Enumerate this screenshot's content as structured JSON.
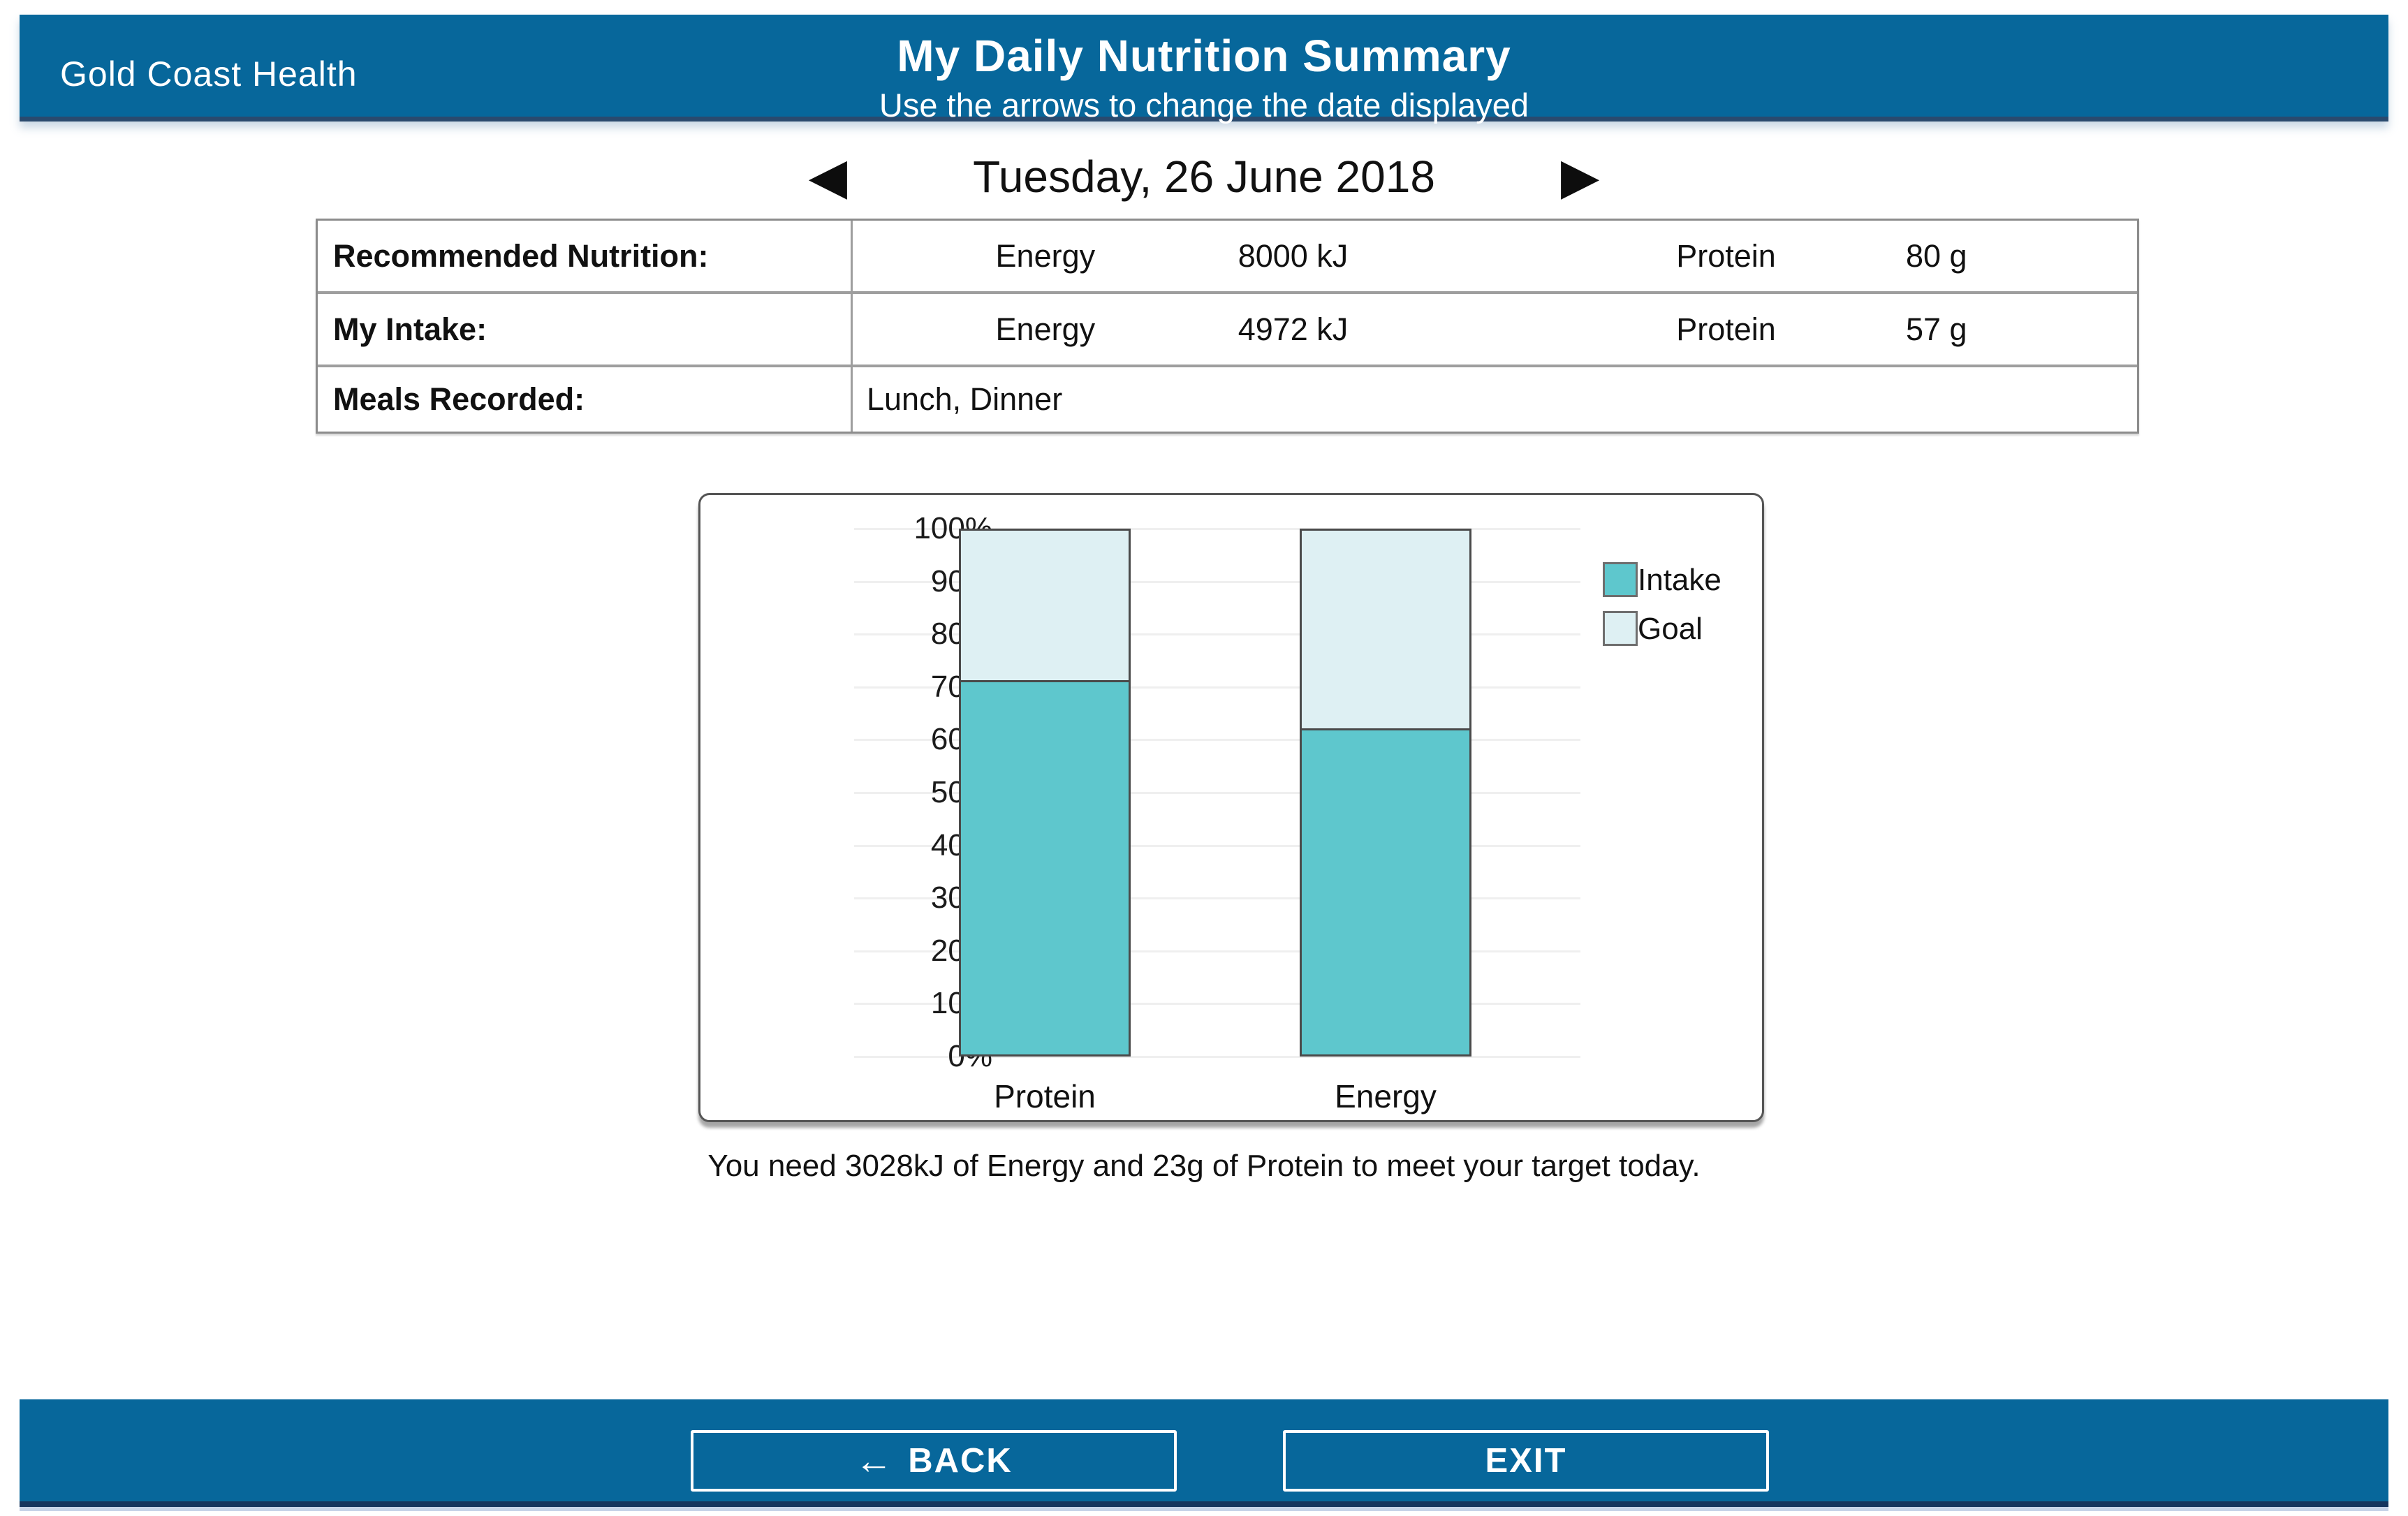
{
  "header": {
    "brand": "Gold Coast Health",
    "title": "My Daily Nutrition Summary",
    "subtitle": "Use the arrows to change the date displayed"
  },
  "date_nav": {
    "prev_icon": "◀",
    "date": "Tuesday, 26 June 2018",
    "next_icon": "▶"
  },
  "summary_table": {
    "rows": [
      {
        "label": "Recommended Nutrition:",
        "energy_label": "Energy",
        "energy_value": "8000 kJ",
        "protein_label": "Protein",
        "protein_value": "80 g"
      },
      {
        "label": "My Intake:",
        "energy_label": "Energy",
        "energy_value": "4972 kJ",
        "protein_label": "Protein",
        "protein_value": "57 g"
      },
      {
        "label": "Meals Recorded:",
        "value": "Lunch, Dinner"
      }
    ]
  },
  "chart_data": {
    "type": "bar",
    "stacked": true,
    "categories": [
      "Protein",
      "Energy"
    ],
    "series": [
      {
        "name": "Intake",
        "values": [
          71.25,
          62.15
        ],
        "color": "#5ec7cd"
      },
      {
        "name": "Goal",
        "values": [
          28.75,
          37.85
        ],
        "color": "#def0f3"
      }
    ],
    "ylabel_ticks": [
      "100%",
      "90%",
      "80%",
      "70%",
      "60%",
      "50%",
      "40%",
      "30%",
      "20%",
      "10%",
      "0%"
    ],
    "ylim": [
      0,
      100
    ],
    "grid": true,
    "legend_position": "right",
    "title": "",
    "xlabel": "",
    "ylabel": ""
  },
  "caption": "You need 3028kJ of Energy and 23g of Protein to meet your target today.",
  "footer": {
    "back_icon": "←",
    "back_label": "BACK",
    "exit_label": "EXIT"
  },
  "colors": {
    "bar_blue": "#07679b",
    "footer_base_line": "#16355e",
    "intake_teal": "#5ec7cd",
    "goal_light": "#def0f3"
  }
}
